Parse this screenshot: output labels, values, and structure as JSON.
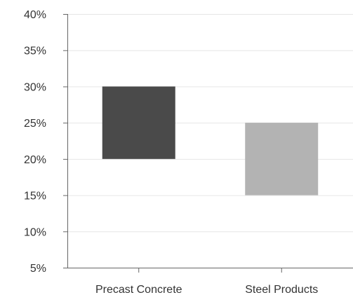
{
  "chart_data": {
    "type": "bar",
    "subtype": "floating",
    "title": "",
    "xlabel": "",
    "ylabel": "",
    "categories": [
      "Precast Concrete",
      "Steel Products"
    ],
    "ranges": [
      {
        "category": "Precast Concrete",
        "low": 20,
        "high": 30,
        "color": "#4a4a4a"
      },
      {
        "category": "Steel Products",
        "low": 15,
        "high": 25,
        "color": "#b3b3b3"
      }
    ],
    "ylim": [
      5,
      40
    ],
    "yticks": [
      5,
      10,
      15,
      20,
      25,
      30,
      35,
      40
    ],
    "ytick_labels": [
      "5%",
      "10%",
      "15%",
      "20%",
      "25%",
      "30%",
      "35%",
      "40%"
    ],
    "grid": true,
    "legend": "none"
  }
}
